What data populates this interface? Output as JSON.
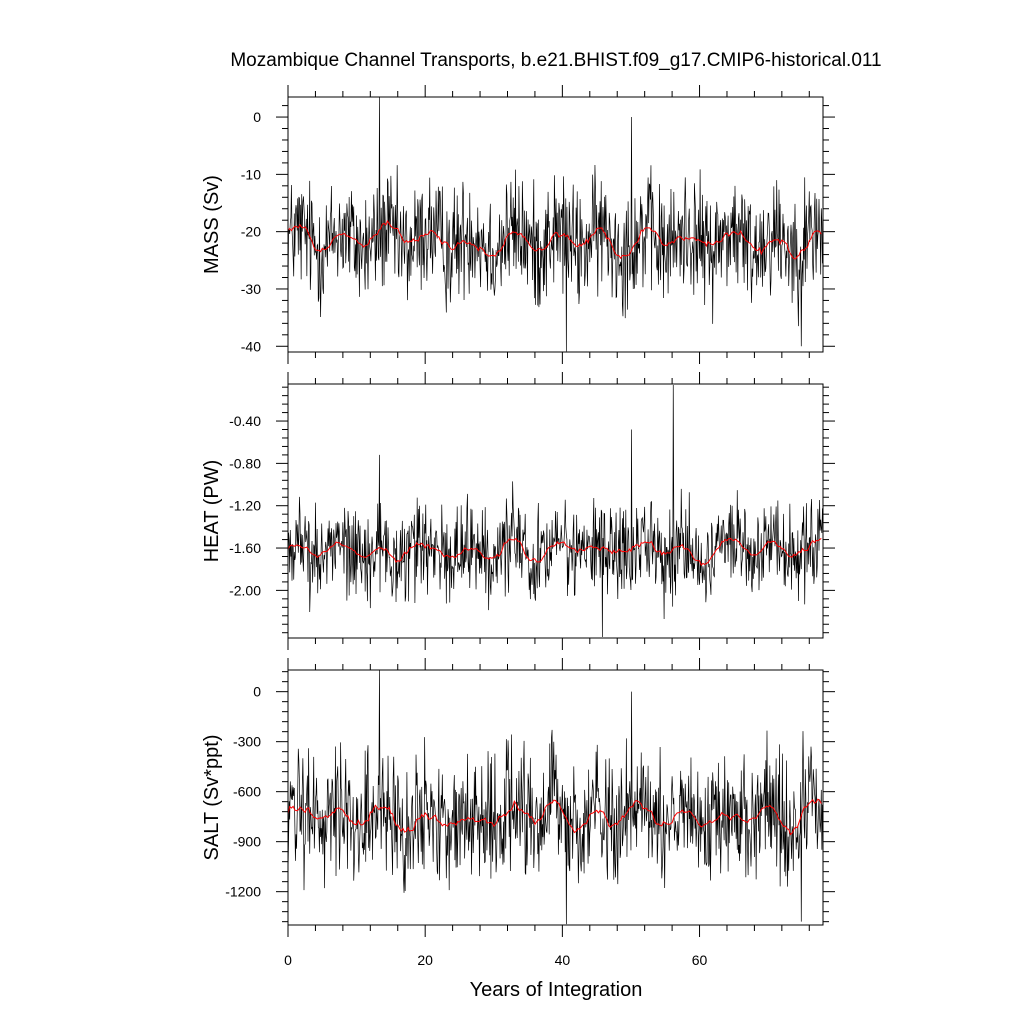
{
  "chart_data": {
    "type": "line",
    "title": "Mozambique Channel Transports, b.e21.BHIST.f09_g17.CMIP6-historical.011",
    "xlabel": "Years of Integration",
    "xlim": [
      0,
      78
    ],
    "xticks": [
      0,
      20,
      40,
      60
    ],
    "xtick_labels": [
      "0",
      "20",
      "40",
      "60"
    ],
    "grid": false,
    "colors": {
      "raw": "#000000",
      "smoothed": "#ff0000"
    },
    "panels": [
      {
        "ylabel": "MASS (Sv)",
        "ylim": [
          -41,
          3.5
        ],
        "yticks": [
          0,
          -10,
          -20,
          -30,
          -40
        ],
        "ytick_labels": [
          "0",
          "-10",
          "-20",
          "-30",
          "-40"
        ],
        "mean": -21.5,
        "amplitude": 5.2,
        "smooth_amplitude": 1.6,
        "spikes": [
          [
            13.3,
            3.5
          ],
          [
            50.1,
            0.0
          ],
          [
            40.6,
            -40.9
          ],
          [
            74.8,
            -40.0
          ]
        ],
        "series": [
          {
            "name": "raw",
            "kind": "monthly"
          },
          {
            "name": "smoothed",
            "kind": "running-mean"
          }
        ]
      },
      {
        "ylabel": "HEAT (PW)",
        "ylim": [
          -2.45,
          -0.05
        ],
        "yticks": [
          -0.4,
          -0.8,
          -1.2,
          -1.6,
          -2.0
        ],
        "ytick_labels": [
          "-0.40",
          "-0.80",
          "-1.20",
          "-1.60",
          "-2.00"
        ],
        "mean": -1.62,
        "amplitude": 0.22,
        "smooth_amplitude": 0.07,
        "spikes": [
          [
            56.2,
            -0.06
          ],
          [
            50.1,
            -0.48
          ],
          [
            13.3,
            -0.72
          ],
          [
            45.8,
            -2.44
          ]
        ],
        "series": [
          {
            "name": "raw",
            "kind": "monthly"
          },
          {
            "name": "smoothed",
            "kind": "running-mean"
          }
        ]
      },
      {
        "ylabel": "SALT (Sv*ppt)",
        "ylim": [
          -1400,
          130
        ],
        "yticks": [
          0,
          -300,
          -600,
          -900,
          -1200
        ],
        "ytick_labels": [
          "0",
          "-300",
          "-600",
          "-900",
          "-1200"
        ],
        "mean": -740,
        "amplitude": 180,
        "smooth_amplitude": 55,
        "spikes": [
          [
            13.3,
            130
          ],
          [
            50.1,
            0
          ],
          [
            40.6,
            -1395
          ],
          [
            74.8,
            -1380
          ]
        ],
        "series": [
          {
            "name": "raw",
            "kind": "monthly"
          },
          {
            "name": "smoothed",
            "kind": "running-mean"
          }
        ]
      }
    ]
  }
}
